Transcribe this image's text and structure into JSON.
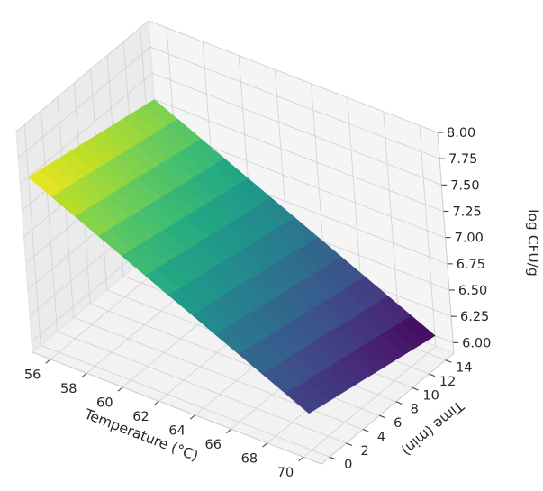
{
  "chart_data": {
    "type": "surface",
    "xlabel": "Temperature (°C)",
    "ylabel": "Time (min)",
    "zlabel": "log CFU/g",
    "xlim": [
      55,
      71
    ],
    "ylim": [
      -1,
      15
    ],
    "zlim": [
      5.9,
      8.0
    ],
    "x_ticks": [
      56,
      58,
      60,
      62,
      64,
      66,
      68,
      70
    ],
    "y_ticks": [
      0,
      2,
      4,
      6,
      8,
      10,
      12,
      14
    ],
    "z_ticks": [
      6.0,
      6.25,
      6.5,
      6.75,
      7.0,
      7.25,
      7.5,
      7.75,
      8.0
    ],
    "x_tick_labels": [
      "56",
      "58",
      "60",
      "62",
      "64",
      "66",
      "68",
      "70"
    ],
    "y_tick_labels": [
      "0",
      "2",
      "4",
      "6",
      "8",
      "10",
      "12",
      "14"
    ],
    "z_tick_labels": [
      "6.00",
      "6.25",
      "6.50",
      "6.75",
      "7.00",
      "7.25",
      "7.50",
      "7.75",
      "8.00"
    ],
    "grid": true,
    "colormap": "viridis",
    "surface": {
      "x": [
        55,
        70
      ],
      "y": [
        0,
        15
      ],
      "z": [
        [
          7.5,
          7.25
        ],
        [
          6.25,
          6.0
        ]
      ],
      "note_rows": "z[i][j] at x[i], y[j]"
    }
  }
}
